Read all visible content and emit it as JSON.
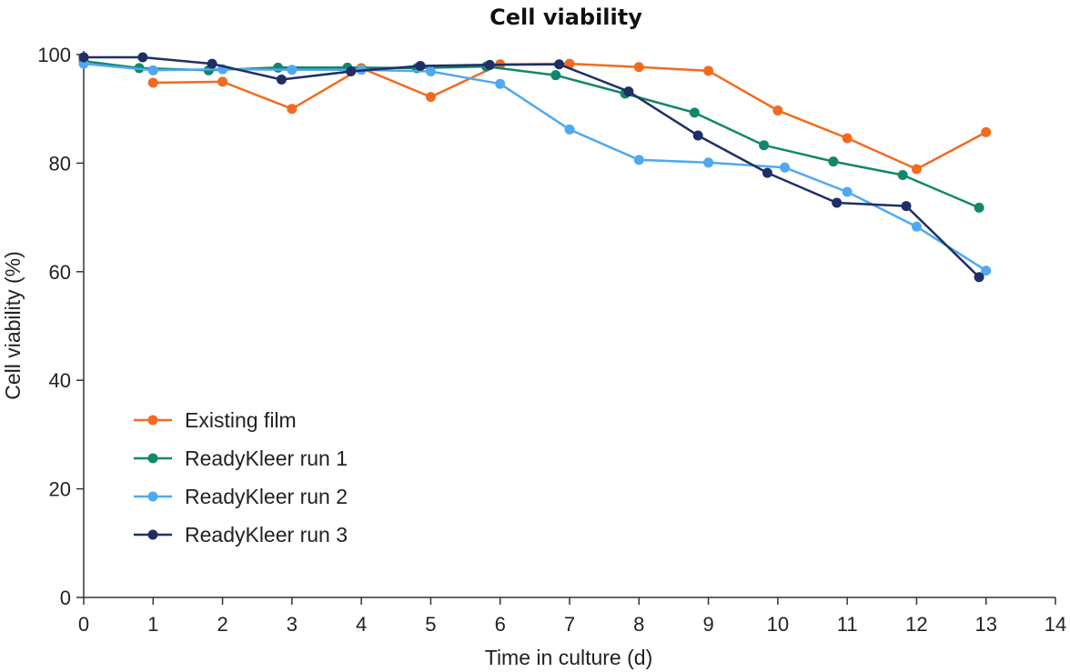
{
  "chart_data": {
    "type": "line",
    "title": "Cell viability",
    "xlabel": "Time in culture (d)",
    "ylabel": "Cell viability (%)",
    "xlim": [
      0,
      14
    ],
    "ylim": [
      0,
      100
    ],
    "x_ticks": [
      0,
      1,
      2,
      3,
      4,
      5,
      6,
      7,
      8,
      9,
      10,
      11,
      12,
      13,
      14
    ],
    "y_ticks": [
      0,
      20,
      40,
      60,
      80,
      100
    ],
    "grid": false,
    "legend_position": "left-middle",
    "series": [
      {
        "name": "Existing film",
        "color": "#f26a21",
        "x": [
          1,
          2,
          3,
          4,
          5,
          6,
          7,
          8,
          9,
          10,
          11,
          12,
          13
        ],
        "y": [
          94.8,
          95.0,
          90.0,
          97.5,
          92.2,
          98.2,
          98.3,
          97.7,
          97.0,
          89.7,
          84.6,
          78.9,
          85.7
        ]
      },
      {
        "name": "ReadyKleer run 1",
        "color": "#12876b",
        "x": [
          0,
          0.8,
          1.8,
          2.8,
          3.8,
          4.8,
          5.8,
          6.8,
          7.8,
          8.8,
          9.8,
          10.8,
          11.8,
          12.9
        ],
        "y": [
          98.8,
          97.5,
          97.1,
          97.6,
          97.6,
          97.5,
          97.8,
          96.2,
          92.8,
          89.3,
          83.3,
          80.3,
          77.8,
          71.8
        ]
      },
      {
        "name": "ReadyKleer run 2",
        "color": "#50a8f0",
        "x": [
          0,
          1,
          2,
          3,
          4,
          5,
          6,
          7,
          8,
          9,
          10.1,
          11,
          12,
          13
        ],
        "y": [
          98.3,
          97.1,
          97.3,
          97.2,
          97.2,
          96.9,
          94.6,
          86.2,
          80.6,
          80.1,
          79.2,
          74.7,
          68.3,
          60.2
        ]
      },
      {
        "name": "ReadyKleer run 3",
        "color": "#1f2f66",
        "x": [
          0,
          0.85,
          1.85,
          2.85,
          3.85,
          4.85,
          5.85,
          6.85,
          7.85,
          8.85,
          9.85,
          10.85,
          11.85,
          12.9
        ],
        "y": [
          99.5,
          99.5,
          98.3,
          95.4,
          96.9,
          97.9,
          98.1,
          98.2,
          93.2,
          85.1,
          78.2,
          72.7,
          72.1,
          59.0
        ]
      }
    ]
  }
}
